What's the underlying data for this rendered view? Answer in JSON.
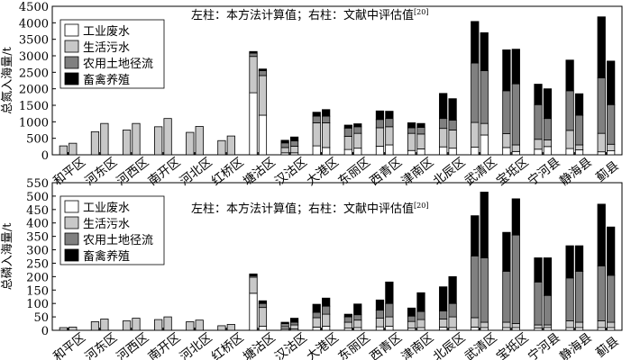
{
  "chart_data": [
    {
      "type": "bar",
      "stacked": true,
      "grouped_pairs": true,
      "annotation_main": "左柱：本方法计算值；右柱：文献中评估值",
      "annotation_ref": "[20]",
      "ylabel": "总氮入海量/t",
      "ylim": [
        0,
        4500
      ],
      "yticks": [
        0,
        500,
        1000,
        1500,
        2000,
        2500,
        3000,
        3500,
        4000,
        4500
      ],
      "categories": [
        "和平区",
        "河东区",
        "河西区",
        "南开区",
        "河北区",
        "红桥区",
        "塘沽区",
        "汉沽区",
        "大港区",
        "东丽区",
        "西青区",
        "津南区",
        "北辰区",
        "武清区",
        "宝坻区",
        "宁河县",
        "静海县",
        "蓟县"
      ],
      "legend": [
        "工业废水",
        "生活污水",
        "农用土地径流",
        "畜禽养殖"
      ],
      "legend_position": "top-left",
      "colors": [
        "#ffffff",
        "#c8c8c8",
        "#808080",
        "#000000"
      ],
      "left_bars": {
        "series": [
          {
            "name": "工业废水",
            "values": [
              0,
              0,
              0,
              0,
              0,
              0,
              1880,
              60,
              270,
              160,
              260,
              130,
              240,
              230,
              220,
              170,
              190,
              90
            ]
          },
          {
            "name": "生活污水",
            "values": [
              270,
              700,
              750,
              850,
              680,
              430,
              1100,
              160,
              700,
              400,
              560,
              520,
              560,
              750,
              420,
              300,
              550,
              560
            ]
          },
          {
            "name": "农用土地径流",
            "values": [
              0,
              0,
              0,
              0,
              0,
              0,
              100,
              140,
              200,
              250,
              250,
              170,
              300,
              1800,
              1300,
              1050,
              1200,
              1680
            ]
          },
          {
            "name": "畜禽养殖",
            "values": [
              0,
              0,
              0,
              0,
              0,
              0,
              50,
              80,
              120,
              90,
              260,
              150,
              760,
              1260,
              1240,
              620,
              930,
              1850
            ]
          }
        ]
      },
      "right_bars": {
        "series": [
          {
            "name": "工业废水",
            "values": [
              0,
              0,
              0,
              0,
              0,
              0,
              1200,
              60,
              220,
              200,
              300,
              180,
              200,
              600,
              100,
              250,
              150,
              120
            ]
          },
          {
            "name": "生活污水",
            "values": [
              350,
              950,
              950,
              1100,
              860,
              570,
              1200,
              200,
              750,
              450,
              550,
              450,
              550,
              350,
              200,
              200,
              150,
              200
            ]
          },
          {
            "name": "农用土地径流",
            "values": [
              0,
              0,
              0,
              0,
              0,
              0,
              150,
              160,
              200,
              200,
              250,
              200,
              300,
              1600,
              1850,
              650,
              900,
              1200
            ]
          },
          {
            "name": "畜禽养殖",
            "values": [
              0,
              0,
              0,
              0,
              0,
              0,
              50,
              120,
              200,
              90,
              220,
              120,
              650,
              1150,
              1050,
              900,
              650,
              1320
            ]
          }
        ]
      }
    },
    {
      "type": "bar",
      "stacked": true,
      "grouped_pairs": true,
      "annotation_main": "左柱：本方法计算值；右柱：文献中评估值",
      "annotation_ref": "[20]",
      "ylabel": "总磷入海量/t",
      "ylim": [
        0,
        550
      ],
      "yticks": [
        0,
        50,
        100,
        150,
        200,
        250,
        300,
        350,
        400,
        450,
        500,
        550
      ],
      "categories": [
        "和平区",
        "河东区",
        "河西区",
        "南开区",
        "河北区",
        "红桥区",
        "塘沽区",
        "汉沽区",
        "大港区",
        "东丽区",
        "西青区",
        "津南区",
        "北辰区",
        "武清区",
        "宝坻区",
        "宁河县",
        "静海县",
        "蓟县"
      ],
      "legend": [
        "工业废水",
        "生活污水",
        "农用土地径流",
        "畜禽养殖"
      ],
      "legend_position": "top-left",
      "colors": [
        "#ffffff",
        "#c8c8c8",
        "#808080",
        "#000000"
      ],
      "left_bars": {
        "series": [
          {
            "name": "工业废水",
            "values": [
              0,
              0,
              0,
              0,
              0,
              0,
              138,
              5,
              12,
              8,
              13,
              8,
              12,
              12,
              10,
              8,
              10,
              10
            ]
          },
          {
            "name": "生活污水",
            "values": [
              10,
              32,
              35,
              40,
              32,
              17,
              60,
              8,
              35,
              22,
              32,
              25,
              30,
              35,
              20,
              12,
              25,
              25
            ]
          },
          {
            "name": "农用土地径流",
            "values": [
              0,
              0,
              0,
              0,
              0,
              0,
              5,
              12,
              20,
              20,
              30,
              20,
              30,
              230,
              190,
              160,
              160,
              205
            ]
          },
          {
            "name": "畜禽养殖",
            "values": [
              0,
              0,
              0,
              0,
              0,
              0,
              7,
              5,
              30,
              10,
              38,
              30,
              90,
              150,
              145,
              90,
              120,
              230
            ]
          }
        ]
      },
      "right_bars": {
        "series": [
          {
            "name": "工业废水",
            "values": [
              0,
              0,
              0,
              0,
              0,
              0,
              15,
              5,
              15,
              10,
              15,
              10,
              10,
              10,
              10,
              10,
              10,
              10
            ]
          },
          {
            "name": "生活污水",
            "values": [
              12,
              42,
              45,
              50,
              38,
              22,
              70,
              15,
              45,
              28,
              35,
              30,
              40,
              20,
              15,
              10,
              20,
              20
            ]
          },
          {
            "name": "农用土地径流",
            "values": [
              0,
              0,
              0,
              0,
              0,
              0,
              15,
              10,
              30,
              20,
              50,
              30,
              50,
              240,
              330,
              110,
              190,
              175
            ]
          },
          {
            "name": "畜禽养殖",
            "values": [
              0,
              0,
              0,
              0,
              0,
              0,
              10,
              15,
              30,
              40,
              80,
              70,
              100,
              245,
              135,
              140,
              95,
              180
            ]
          }
        ]
      }
    }
  ]
}
